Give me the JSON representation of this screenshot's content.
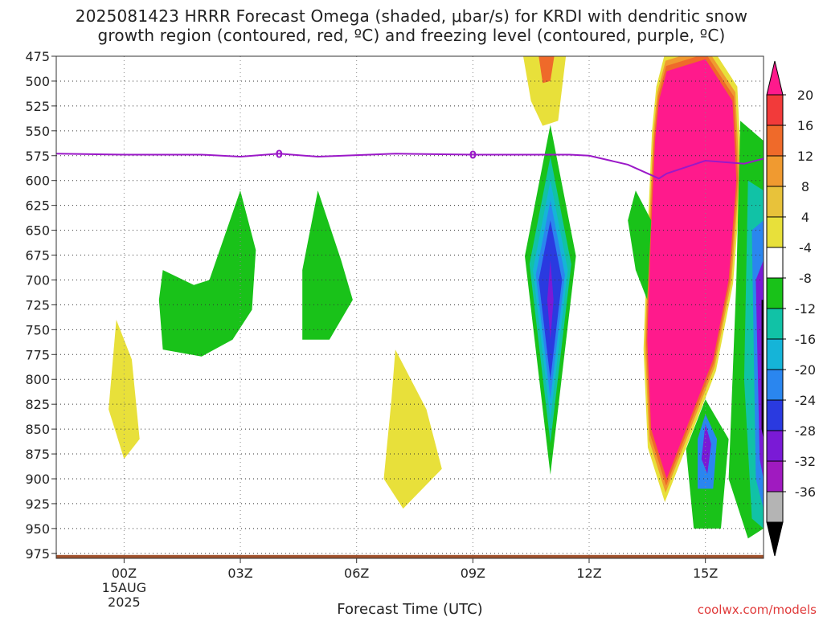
{
  "title": {
    "line1": "2025081423 HRRR Forecast Omega (shaded, μbar/s) for KRDI with dendritic snow",
    "line2": "growth region (contoured, red, ºC) and freezing level (contoured, purple, ºC)"
  },
  "credit": "coolwx.com/models",
  "chart_data": {
    "type": "heatmap",
    "xlabel": "Forecast Time (UTC)",
    "ylabel": "",
    "x_range_hours": [
      -1.75,
      16.5
    ],
    "y_range_mb": [
      475,
      980
    ],
    "y_ticks": [
      {
        "value": 475,
        "label": "475"
      },
      {
        "value": 500,
        "label": "500"
      },
      {
        "value": 525,
        "label": "525"
      },
      {
        "value": 550,
        "label": "550"
      },
      {
        "value": 575,
        "label": "575"
      },
      {
        "value": 600,
        "label": "600"
      },
      {
        "value": 625,
        "label": "625"
      },
      {
        "value": 650,
        "label": "650"
      },
      {
        "value": 675,
        "label": "675"
      },
      {
        "value": 700,
        "label": "700"
      },
      {
        "value": 725,
        "label": "725"
      },
      {
        "value": 750,
        "label": "750"
      },
      {
        "value": 775,
        "label": "775"
      },
      {
        "value": 800,
        "label": "800"
      },
      {
        "value": 825,
        "label": "825"
      },
      {
        "value": 850,
        "label": "850"
      },
      {
        "value": 875,
        "label": "875"
      },
      {
        "value": 900,
        "label": "900"
      },
      {
        "value": 925,
        "label": "925"
      },
      {
        "value": 950,
        "label": "950"
      },
      {
        "value": 975,
        "label": "975"
      }
    ],
    "x_ticks": [
      {
        "value": 0,
        "label": "00Z",
        "sub1": "15AUG",
        "sub2": "2025"
      },
      {
        "value": 3,
        "label": "03Z"
      },
      {
        "value": 6,
        "label": "06Z"
      },
      {
        "value": 9,
        "label": "09Z"
      },
      {
        "value": 12,
        "label": "12Z"
      },
      {
        "value": 15,
        "label": "15Z"
      }
    ],
    "colorbar": {
      "labels": [
        "20",
        "16",
        "12",
        "8",
        "4",
        "-4",
        "-8",
        "-12",
        "-16",
        "-20",
        "-24",
        "-28",
        "-32",
        "-36"
      ],
      "colors": [
        "#ff1a8c",
        "#f23a3a",
        "#ef6a2a",
        "#f09a30",
        "#e8c23a",
        "#e8e03a",
        "#ffffff",
        "#19c219",
        "#11c2a6",
        "#15b4d8",
        "#2a86ef",
        "#2a3ae0",
        "#7a1ad6",
        "#a01ac0",
        "#b4b4b4",
        "#000000"
      ]
    },
    "freezing_level": {
      "label": "0",
      "points": [
        [
          -1.75,
          573
        ],
        [
          0,
          574
        ],
        [
          2,
          574
        ],
        [
          3,
          576
        ],
        [
          4,
          573
        ],
        [
          5,
          576
        ],
        [
          7,
          573
        ],
        [
          9,
          574
        ],
        [
          10,
          574
        ],
        [
          11.5,
          574
        ],
        [
          12,
          575
        ],
        [
          13,
          584
        ],
        [
          13.8,
          598
        ],
        [
          14,
          593
        ],
        [
          15,
          580
        ],
        [
          16,
          583
        ],
        [
          16.5,
          578
        ]
      ]
    },
    "features": [
      {
        "name": "upper-positive-core",
        "color": "#ff1a8c",
        "points": [
          [
            14,
            490
          ],
          [
            15,
            478
          ],
          [
            15.7,
            520
          ],
          [
            15.8,
            600
          ],
          [
            15.6,
            700
          ],
          [
            15.2,
            780
          ],
          [
            14.6,
            840
          ],
          [
            14,
            900
          ],
          [
            13.6,
            850
          ],
          [
            13.5,
            760
          ],
          [
            13.6,
            650
          ],
          [
            13.7,
            560
          ],
          [
            13.8,
            520
          ]
        ]
      },
      {
        "name": "negative-core-11z",
        "color": "#2a3ae0",
        "points": [
          [
            11,
            640
          ],
          [
            11.3,
            700
          ],
          [
            11,
            800
          ],
          [
            10.7,
            700
          ]
        ]
      },
      {
        "name": "green-blob-02z",
        "color": "#19c219",
        "points": [
          [
            1,
            690
          ],
          [
            1.8,
            705
          ],
          [
            2.2,
            700
          ],
          [
            3,
            610
          ],
          [
            3.4,
            670
          ],
          [
            3.3,
            730
          ],
          [
            2.8,
            760
          ],
          [
            2,
            777
          ],
          [
            1,
            770
          ],
          [
            0.9,
            720
          ]
        ]
      },
      {
        "name": "green-blob-05z",
        "color": "#19c219",
        "points": [
          [
            5,
            610
          ],
          [
            5.6,
            680
          ],
          [
            5.9,
            720
          ],
          [
            5.3,
            760
          ],
          [
            4.6,
            760
          ],
          [
            4.6,
            690
          ]
        ]
      },
      {
        "name": "yellow-blob-00z",
        "color": "#e8e03a",
        "points": [
          [
            -0.2,
            740
          ],
          [
            0.2,
            780
          ],
          [
            0.4,
            860
          ],
          [
            0,
            880
          ],
          [
            -0.4,
            830
          ]
        ]
      },
      {
        "name": "yellow-blob-07z",
        "color": "#e8e03a",
        "points": [
          [
            7,
            770
          ],
          [
            7.8,
            830
          ],
          [
            8.2,
            890
          ],
          [
            7.2,
            930
          ],
          [
            6.7,
            900
          ],
          [
            6.9,
            820
          ]
        ]
      }
    ],
    "grid": true,
    "legend_placement": "right"
  }
}
